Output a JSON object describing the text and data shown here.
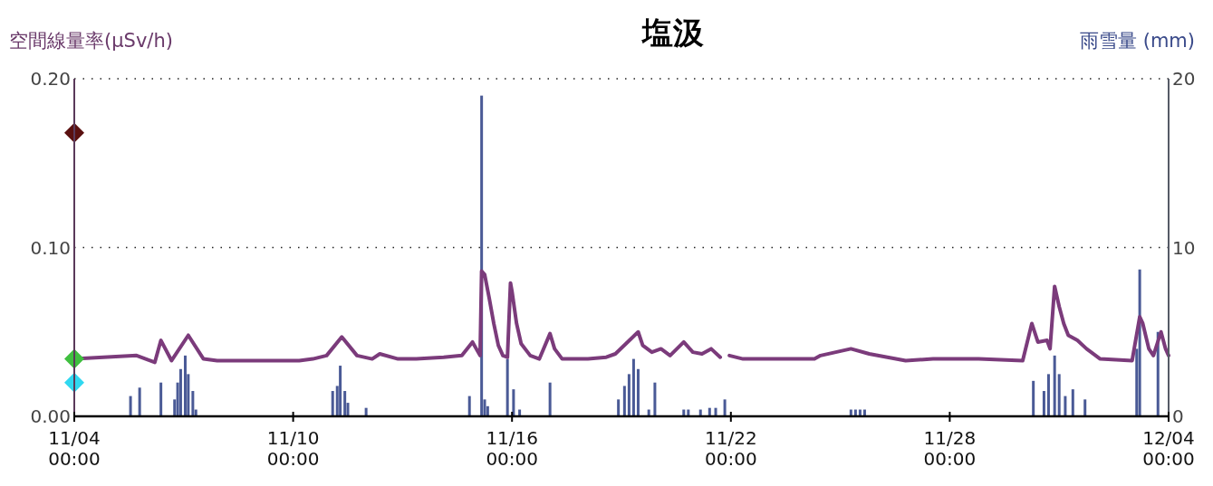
{
  "chart_data": {
    "type": "line",
    "title": "塩汲",
    "ylabel": "空間線量率(μSv/h)",
    "y2label": "雨雪量 (mm)",
    "xlim": [
      "--11-04T00:00",
      "--12-04T00:00"
    ],
    "xticks": [
      {
        "value": "--11-04T00:00",
        "label": "11/04\n00:00"
      },
      {
        "value": "--11-10T00:00",
        "label": "11/10\n00:00"
      },
      {
        "value": "--11-16T00:00",
        "label": "11/16\n00:00"
      },
      {
        "value": "--11-22T00:00",
        "label": "11/22\n00:00"
      },
      {
        "value": "--11-28T00:00",
        "label": "11/28\n00:00"
      },
      {
        "value": "--12-04T00:00",
        "label": "12/04\n00:00"
      }
    ],
    "ylim": [
      0,
      0.2
    ],
    "yticks": [
      {
        "value": 0,
        "label": "0.00"
      },
      {
        "value": 0.1,
        "label": "0.10"
      },
      {
        "value": 0.2,
        "label": "0.20"
      }
    ],
    "y2lim": [
      0,
      20
    ],
    "y2ticks": [
      0,
      10,
      20
    ],
    "grid": "y",
    "line_style": "solid",
    "series": [
      {
        "type": "bar",
        "axis": "y2",
        "color": "#4a5a96",
        "x": [
          "--11-05T13:00",
          "--11-05T19:00",
          "--11-06T09:00",
          "--11-06T18:00",
          "--11-06T20:00",
          "--11-06T22:00",
          "--11-07T01:00",
          "--11-07T03:00",
          "--11-07T06:00",
          "--11-07T08:00",
          "--11-11T02:00",
          "--11-11T05:00",
          "--11-11T07:00",
          "--11-11T10:00",
          "--11-11T12:00",
          "--11-12T00:00",
          "--11-14T20:00",
          "--11-15T04:00",
          "--11-15T06:00",
          "--11-15T08:00",
          "--11-15T21:00",
          "--11-16T01:00",
          "--11-16T05:00",
          "--11-17T01:00",
          "--11-18T22:00",
          "--11-19T02:00",
          "--11-19T05:00",
          "--11-19T08:00",
          "--11-19T11:00",
          "--11-19T18:00",
          "--11-19T22:00",
          "--11-20T17:00",
          "--11-20T20:00",
          "--11-21T04:00",
          "--11-21T10:00",
          "--11-21T14:00",
          "--11-21T20:00",
          "--11-25T07:00",
          "--11-25T10:00",
          "--11-25T13:00",
          "--11-25T16:00",
          "--11-30T07:00",
          "--11-30T14:00",
          "--11-30T17:00",
          "--11-30T21:00",
          "--12-01T00:00",
          "--12-01T04:00",
          "--12-01T09:00",
          "--12-01T17:00",
          "--12-03T03:00",
          "--12-03T05:00",
          "--12-03T17:00"
        ],
        "values": [
          1.2,
          1.7,
          2.0,
          1.0,
          2.0,
          2.8,
          3.6,
          2.5,
          1.5,
          0.4,
          1.5,
          1.8,
          3.0,
          1.5,
          0.8,
          0.5,
          1.2,
          19.0,
          1.0,
          0.6,
          3.4,
          1.6,
          0.4,
          2.0,
          1.0,
          1.8,
          2.5,
          3.4,
          2.8,
          0.4,
          2.0,
          0.4,
          0.4,
          0.4,
          0.5,
          0.5,
          1.0,
          0.4,
          0.4,
          0.4,
          0.4,
          2.1,
          1.5,
          2.5,
          3.6,
          2.5,
          1.2,
          1.6,
          1.0,
          4.0,
          8.7,
          5.0
        ]
      },
      {
        "marker": "none",
        "color": "#7b3b7b",
        "x": [
          "--11-04T00:00",
          "--11-05T17:00",
          "--11-06T05:00",
          "--11-06T09:00",
          "--11-06T16:00",
          "--11-07T03:00",
          "--11-07T13:00",
          "--11-07T22:00",
          "--11-10T04:00",
          "--11-10T13:00",
          "--11-10T22:00",
          "--11-11T08:00",
          "--11-11T18:00",
          "--11-12T04:00",
          "--11-12T09:00",
          "--11-12T21:00",
          "--11-13T09:00",
          "--11-14T03:00",
          "--11-14T15:00",
          "--11-14T22:00",
          "--11-15T03:00",
          "--11-15T04:00",
          "--11-15T06:00",
          "--11-15T09:00",
          "--11-15T12:00",
          "--11-15T15:00",
          "--11-15T18:00",
          "--11-15T21:00",
          "--11-15T23:00",
          "--11-16T00:00",
          "--11-16T03:00",
          "--11-16T06:00",
          "--11-16T12:00",
          "--11-16T18:00",
          "--11-17T01:00",
          "--11-17T04:00",
          "--11-17T09:00",
          "--11-18T02:00",
          "--11-18T14:00",
          "--11-18T20:00",
          "--11-19T11:00",
          "--11-19T14:00",
          "--11-19T20:00",
          "--11-20T02:00",
          "--11-20T08:00",
          "--11-20T17:00",
          "--11-20T23:00",
          "--11-21T05:00",
          "--11-21T11:00",
          "--11-21T17:00",
          "--11-21T21:00",
          "--11-21T23:00",
          "--11-22T08:00",
          "--11-23T20:00",
          "--11-24T07:00",
          "--11-24T11:00",
          "--11-25T07:00",
          "--11-25T19:00",
          "--11-26T19:00",
          "--11-27T13:00",
          "--11-28T19:00",
          "--11-30T00:00",
          "--11-30T06:00",
          "--11-30T10:00",
          "--11-30T16:00",
          "--11-30T18:00",
          "--11-30T21:00",
          "--12-01T00:00",
          "--12-01T03:00",
          "--12-01T06:00",
          "--12-01T12:00",
          "--12-01T18:00",
          "--12-02T03:00",
          "--12-03T00:00",
          "--12-03T05:00",
          "--12-03T07:00",
          "--12-03T11:00",
          "--12-03T14:00",
          "--12-03T19:00",
          "--12-03T22:00",
          "--12-04T00:00"
        ],
        "values": [
          0.034,
          0.036,
          0.032,
          0.045,
          0.033,
          0.048,
          0.034,
          0.033,
          0.033,
          0.034,
          0.036,
          0.047,
          0.036,
          0.034,
          0.037,
          0.034,
          0.034,
          0.035,
          0.036,
          0.044,
          0.036,
          0.086,
          0.084,
          0.07,
          0.055,
          0.042,
          0.036,
          0.035,
          0.079,
          0.074,
          0.055,
          0.043,
          0.036,
          0.034,
          0.049,
          0.04,
          0.034,
          0.034,
          0.035,
          0.037,
          0.05,
          0.042,
          0.038,
          0.04,
          0.036,
          0.044,
          0.038,
          0.037,
          0.04,
          0.035,
          null,
          0.036,
          0.034,
          0.034,
          0.034,
          0.036,
          0.04,
          0.037,
          0.033,
          0.034,
          0.034,
          0.033,
          0.055,
          0.044,
          0.045,
          0.04,
          0.077,
          0.065,
          0.055,
          0.048,
          0.045,
          0.04,
          0.034,
          0.033,
          0.059,
          0.055,
          0.04,
          0.036,
          0.05,
          0.04,
          0.036
        ]
      },
      {
        "type": "scatter",
        "marker": "diamond",
        "x": [
          "--11-04T00:00",
          "--11-04T00:00",
          "--11-04T00:00"
        ],
        "values": [
          0.168,
          0.034,
          0.02
        ],
        "colors": [
          "#5a1010",
          "#3fbf3f",
          "#30d8f0"
        ]
      }
    ]
  }
}
